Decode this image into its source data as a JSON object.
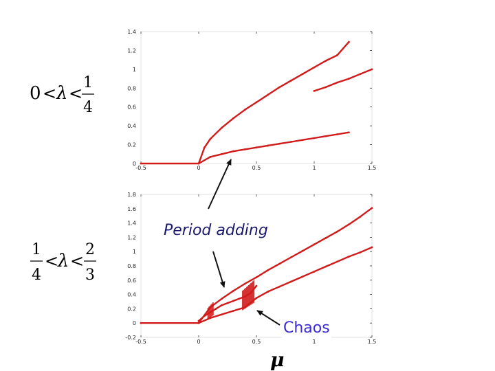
{
  "colors": {
    "curve": "#d11a1a",
    "axis": "#333333",
    "annot_chaos": "#3a2bd6",
    "annot_period": "#1a1a6e",
    "arrow": "#111111"
  },
  "labels": {
    "cond1": {
      "left": "0",
      "lt1": "<",
      "lambda": "λ",
      "lt2": "<",
      "num": "1",
      "den": "4"
    },
    "cond2": {
      "num1": "1",
      "den1": "4",
      "lt1": "<",
      "lambda": "λ",
      "lt2": "<",
      "num2": "2",
      "den2": "3"
    },
    "period_adding": "Period adding",
    "chaos": "Chaos",
    "mu": "μ"
  },
  "chart_data": [
    {
      "type": "scatter",
      "title": "",
      "xlabel": "",
      "ylabel": "",
      "xlim": [
        -0.5,
        1.5
      ],
      "ylim": [
        0,
        1.4
      ],
      "xticks": [
        "-0.5",
        "0",
        "0.5",
        "1",
        "1.5"
      ],
      "yticks": [
        "0",
        "0.2",
        "0.4",
        "0.6",
        "0.8",
        "1",
        "1.2",
        "1.4"
      ],
      "series": [
        {
          "x": [
            -0.5,
            0.0
          ],
          "y": [
            0.0,
            0.0
          ]
        },
        {
          "x": [
            0.0,
            0.05,
            0.1,
            0.2,
            0.3,
            0.4,
            0.5,
            0.6,
            0.7,
            0.8,
            0.9,
            1.0,
            1.1,
            1.2,
            1.3
          ],
          "y": [
            0.0,
            0.17,
            0.26,
            0.38,
            0.48,
            0.57,
            0.65,
            0.73,
            0.81,
            0.88,
            0.95,
            1.02,
            1.09,
            1.15,
            1.29
          ]
        },
        {
          "x": [
            0.0,
            0.1,
            0.2,
            0.3,
            0.4,
            0.5,
            0.6,
            0.7,
            0.8,
            0.9,
            1.0,
            1.1,
            1.2,
            1.3
          ],
          "y": [
            0.0,
            0.07,
            0.1,
            0.13,
            0.15,
            0.17,
            0.19,
            0.21,
            0.23,
            0.25,
            0.27,
            0.29,
            0.31,
            0.33
          ]
        },
        {
          "x": [
            1.0,
            1.1,
            1.2,
            1.3,
            1.4,
            1.5
          ],
          "y": [
            0.77,
            0.81,
            0.86,
            0.9,
            0.95,
            1.0
          ]
        }
      ]
    },
    {
      "type": "scatter",
      "title": "",
      "xlabel": "μ",
      "ylabel": "",
      "xlim": [
        -0.5,
        1.5
      ],
      "ylim": [
        -0.2,
        1.8
      ],
      "xticks": [
        "-0.5",
        "0",
        "0.5",
        "1",
        "1.5"
      ],
      "yticks": [
        "-0.2",
        "0",
        "0.2",
        "0.4",
        "0.6",
        "0.8",
        "1",
        "1.2",
        "1.4",
        "1.6",
        "1.8"
      ],
      "series": [
        {
          "x": [
            -0.5,
            0.0
          ],
          "y": [
            0.0,
            0.0
          ]
        },
        {
          "x": [
            0.0,
            0.1,
            0.2,
            0.3,
            0.4,
            0.5,
            0.6,
            0.7,
            0.8,
            0.9,
            1.0,
            1.1,
            1.2,
            1.3,
            1.4,
            1.5
          ],
          "y": [
            0.0,
            0.22,
            0.34,
            0.45,
            0.55,
            0.64,
            0.74,
            0.83,
            0.92,
            1.01,
            1.1,
            1.19,
            1.28,
            1.38,
            1.49,
            1.61
          ]
        },
        {
          "x": [
            0.0,
            0.1,
            0.2,
            0.3,
            0.4,
            0.5,
            0.6,
            0.7,
            0.8,
            0.9,
            1.0,
            1.1,
            1.2,
            1.3,
            1.4,
            1.5
          ],
          "y": [
            0.0,
            0.07,
            0.12,
            0.17,
            0.22,
            0.35,
            0.44,
            0.51,
            0.58,
            0.65,
            0.72,
            0.79,
            0.86,
            0.93,
            0.99,
            1.06
          ]
        },
        {
          "x": [
            0.0,
            0.05,
            0.1,
            0.15,
            0.2,
            0.25,
            0.3,
            0.35,
            0.4,
            0.45,
            0.5
          ],
          "y": [
            0.03,
            0.1,
            0.15,
            0.2,
            0.25,
            0.28,
            0.31,
            0.34,
            0.37,
            0.42,
            0.52
          ]
        }
      ],
      "chaos_bands": [
        {
          "x0": 0.08,
          "x1": 0.13,
          "y0": 0.05,
          "y1": 0.3
        },
        {
          "x0": 0.38,
          "x1": 0.48,
          "y0": 0.18,
          "y1": 0.6
        }
      ]
    }
  ]
}
